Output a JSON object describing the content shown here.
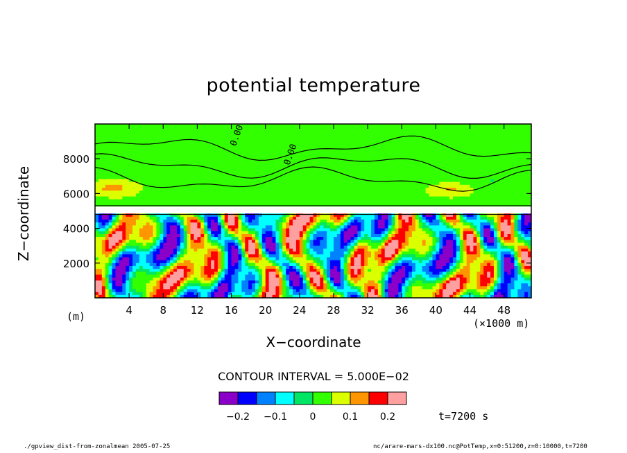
{
  "chart_data": {
    "type": "heatmap",
    "title": "potential temperature",
    "xlabel": "X−coordinate",
    "ylabel": "Z−coordinate",
    "x_unit_left": "(m)",
    "x_unit_right": "(×1000 m)",
    "xlim": [
      0,
      51.2
    ],
    "ylim": [
      0,
      10000
    ],
    "x_ticks": [
      4,
      8,
      12,
      16,
      20,
      24,
      28,
      32,
      36,
      40,
      44,
      48
    ],
    "y_ticks": [
      2000,
      4000,
      6000,
      8000
    ],
    "contour_labels": [
      "0.00",
      "0.00"
    ],
    "contour_interval": "CONTOUR INTERVAL = 5.000E−02",
    "colorbar": {
      "colors": [
        "#8a00c8",
        "#0000ff",
        "#0082ff",
        "#00ffff",
        "#00e664",
        "#32ff00",
        "#dcff00",
        "#ff9600",
        "#ff0000",
        "#ffa0a0"
      ],
      "tick_labels": [
        "−0.2",
        "−0.1",
        "0",
        "0.1",
        "0.2"
      ],
      "tick_values": [
        -0.2,
        -0.1,
        0,
        0.1,
        0.2
      ],
      "range": [
        -0.25,
        0.25
      ]
    },
    "time_label": "t=7200 s"
  },
  "footer": {
    "left": "./gpview_dist-from-zonalmean  2005-07-25",
    "right": "nc/arare-mars-dx100.nc@PotTemp,x=0:51200,z=0:10000,t=7200"
  }
}
